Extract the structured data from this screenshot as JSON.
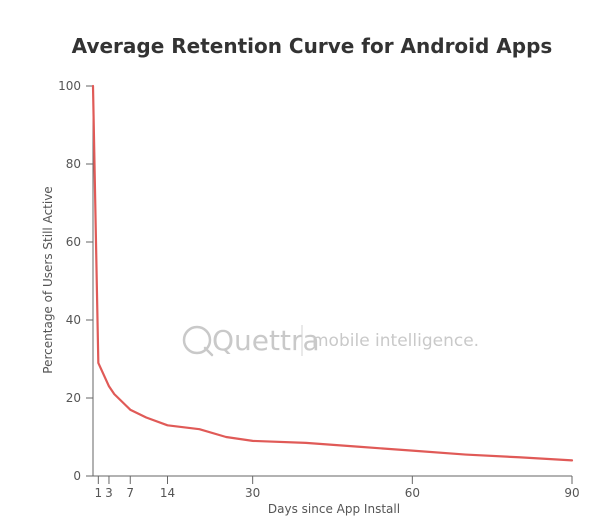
{
  "chart_data": {
    "type": "line",
    "title": "Average Retention Curve for Android Apps",
    "xlabel": "Days since App Install",
    "ylabel": "Percentage of Users Still Active",
    "xlim": [
      0,
      90
    ],
    "ylim": [
      0,
      100
    ],
    "x_ticks": [
      1,
      3,
      7,
      14,
      30,
      60,
      90
    ],
    "y_ticks": [
      0,
      20,
      40,
      60,
      80,
      100
    ],
    "grid": false,
    "line_color": "#e05a57",
    "series": [
      {
        "x": [
          0,
          1,
          3,
          4,
          7,
          10,
          14,
          20,
          25,
          30,
          40,
          50,
          60,
          70,
          80,
          90
        ],
        "values": [
          100,
          29,
          23,
          21,
          17,
          15,
          13,
          12,
          10,
          9,
          8.5,
          7.5,
          6.5,
          5.5,
          4.8,
          4
        ]
      }
    ]
  },
  "watermark": {
    "brand": "Quettra",
    "tagline": "mobile intelligence.",
    "color": "#c9c9c9"
  }
}
